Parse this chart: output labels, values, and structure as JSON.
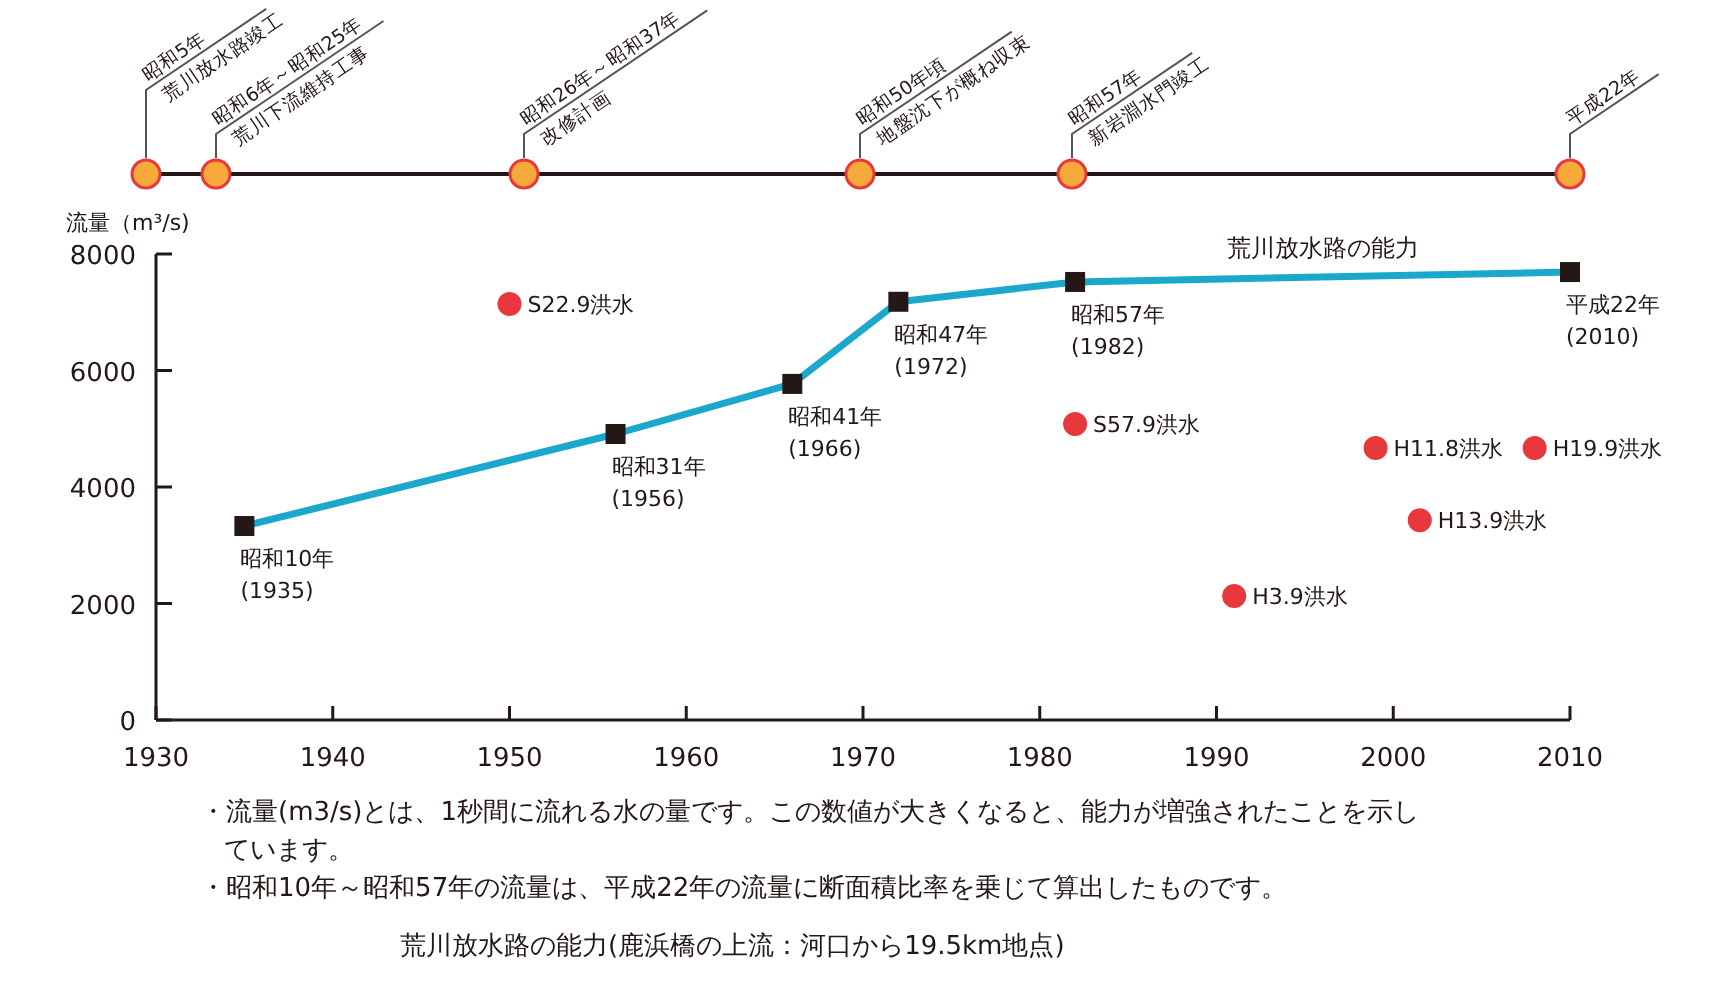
{
  "chart_data": {
    "type": "line",
    "title": "荒川放水路の能力(鹿浜橋の上流：河口から19.5km地点)",
    "ylabel": "流量（m³/s)",
    "xlim": [
      1930,
      2010
    ],
    "xticks": [
      1930,
      1940,
      1950,
      1960,
      1970,
      1980,
      1990,
      2000,
      2010
    ],
    "ylim": [
      0,
      8000
    ],
    "yticks": [
      0,
      2000,
      4000,
      6000,
      8000
    ],
    "grid": false,
    "series": [
      {
        "name": "荒川放水路の能力",
        "type": "line",
        "color": "#1ba8cc",
        "marker": "square",
        "x": [
          1935,
          1956,
          1966,
          1972,
          1982,
          2010
        ],
        "values": [
          3330,
          4910,
          5770,
          7180,
          7520,
          7690
        ]
      },
      {
        "type": "scatter",
        "color": "#e8383d",
        "marker": "circle",
        "x": [
          1950,
          1982,
          1991,
          1999,
          2001.5,
          2008
        ],
        "values": [
          7140,
          5080,
          2130,
          4670,
          3430,
          4670
        ]
      }
    ],
    "annotations": [
      {
        "text": "昭和10年\n(1935)",
        "x": 1935,
        "y": 3330
      },
      {
        "text": "昭和31年\n(1956)",
        "x": 1956,
        "y": 4910
      },
      {
        "text": "昭和41年\n(1966)",
        "x": 1966,
        "y": 5770
      },
      {
        "text": "昭和47年\n(1972)",
        "x": 1972,
        "y": 7180
      },
      {
        "text": "昭和57年\n(1982)",
        "x": 1982,
        "y": 7520
      },
      {
        "text": "平成22年\n(2010)",
        "x": 2010,
        "y": 7690
      },
      {
        "text": "S22.9洪水",
        "x": 1950,
        "y": 7140
      },
      {
        "text": "S57.9洪水",
        "x": 1982,
        "y": 5080
      },
      {
        "text": "H3.9洪水",
        "x": 1991,
        "y": 2130
      },
      {
        "text": "H11.8洪水",
        "x": 1999,
        "y": 4670
      },
      {
        "text": "H13.9洪水",
        "x": 2001.5,
        "y": 3430
      },
      {
        "text": "H19.9洪水",
        "x": 2008,
        "y": 4670
      },
      "昭和5年\n荒川放水路竣工",
      "昭和6年～昭和25年\n荒川下流維持工事",
      "昭和26年～昭和37年\n改修計画",
      "昭和50年頃\n地盤沈下が概ね収束",
      "昭和57年\n新岩淵水門竣工",
      "平成22年",
      "・流量(m3/s)とは、1秒間に流れる水の量です。この数値が大きくなると、能力が増強されたことを示しています。",
      "・昭和10年～昭和57年の流量は、平成22年の流量に断面積比率を乗じて算出したものです。"
    ]
  }
}
